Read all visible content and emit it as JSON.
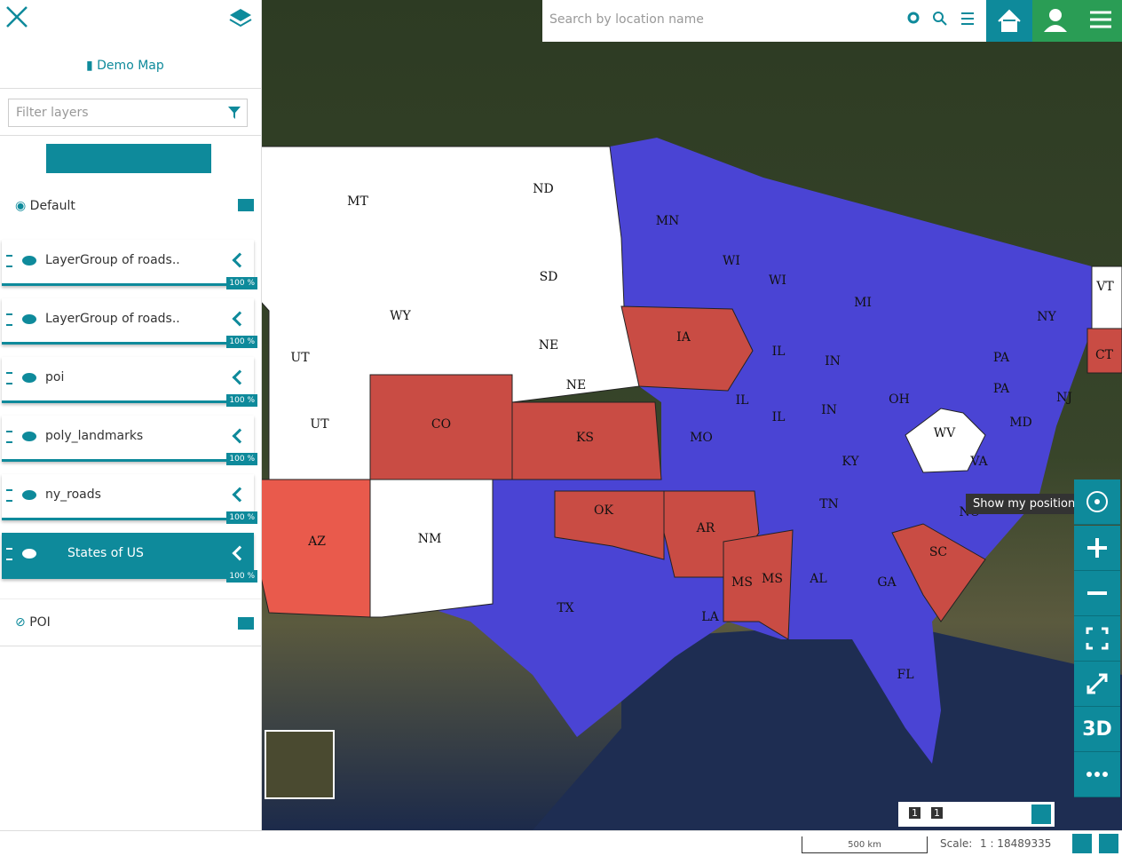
{
  "search": {
    "placeholder": "Search by location name"
  },
  "sidebar": {
    "title": "Demo Map",
    "filter_placeholder": "Filter layers",
    "groups": [
      {
        "name": "Default"
      },
      {
        "name": "POI"
      }
    ],
    "layers": [
      {
        "name": "LayerGroup of roads..",
        "opacity": "100 %"
      },
      {
        "name": "LayerGroup of roads..",
        "opacity": "100 %"
      },
      {
        "name": "poi",
        "opacity": "100 %"
      },
      {
        "name": "poly_landmarks",
        "opacity": "100 %"
      },
      {
        "name": "ny_roads",
        "opacity": "100 %"
      },
      {
        "name": "States of US",
        "opacity": "100 %"
      }
    ]
  },
  "map": {
    "state_labels": [
      "MT",
      "ND",
      "MN",
      "SD",
      "WY",
      "WI",
      "WI",
      "MI",
      "NY",
      "VT",
      "UT",
      "UT",
      "NE",
      "NE",
      "IA",
      "IL",
      "IN",
      "PA",
      "PA",
      "CT",
      "OH",
      "CO",
      "KS",
      "MO",
      "IL",
      "IL",
      "IN",
      "WV",
      "KY",
      "VA",
      "NJ",
      "MD",
      "TN",
      "NC",
      "AZ",
      "NM",
      "OK",
      "AR",
      "SC",
      "MS",
      "MS",
      "AL",
      "GA",
      "TX",
      "LA",
      "FL"
    ],
    "tooltip": "Show my position",
    "button_3d": "3D"
  },
  "bottom_toolbar": {
    "badges": [
      "1",
      "1"
    ]
  },
  "footer": {
    "scale_bar": "500 km",
    "scale_label": "Scale:",
    "scale_value": "1 : 18489335"
  }
}
